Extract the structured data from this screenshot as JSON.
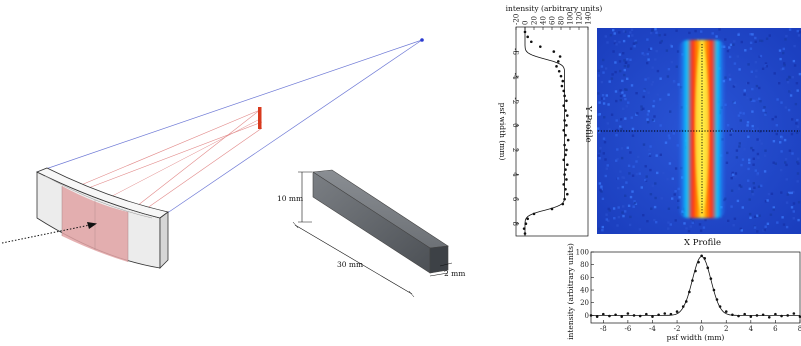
{
  "schematic": {
    "dim_height": "10 mm",
    "dim_length": "30 mm",
    "dim_depth": "2 mm"
  },
  "image_panel": {
    "x_profile_title": "X Profile",
    "y_profile_title": "Y Profile"
  },
  "chart_data": [
    {
      "type": "scatter",
      "name": "x-profile",
      "xlabel": "psf width (mm)",
      "ylabel": "intensity (arbitrary units)",
      "xlim": [
        -9,
        8
      ],
      "ylim": [
        -12,
        100
      ],
      "xticks": [
        -8,
        -6,
        -4,
        -2,
        0,
        2,
        4,
        6,
        8
      ],
      "yticks": [
        0,
        20,
        40,
        60,
        80,
        100
      ],
      "fit": {
        "amplitude": 93,
        "center": 0.0,
        "sigma": 0.75,
        "baseline": 0
      },
      "points_x": [
        -9,
        -8.5,
        -8,
        -7.5,
        -7,
        -6.5,
        -6,
        -5.5,
        -5,
        -4.5,
        -4,
        -3.5,
        -3,
        -2.5,
        -2,
        -1.5,
        -1.25,
        -1,
        -0.75,
        -0.5,
        -0.25,
        0,
        0.25,
        0.5,
        0.75,
        1,
        1.25,
        1.5,
        2,
        2.5,
        3,
        3.5,
        4,
        4.5,
        5,
        5.5,
        6,
        6.5,
        7,
        7.5,
        8
      ],
      "points_y": [
        0,
        -2,
        2,
        -1,
        1,
        -2,
        3,
        0,
        -1,
        2,
        -2,
        1,
        3,
        2,
        6,
        14,
        22,
        37,
        55,
        70,
        84,
        94,
        90,
        75,
        58,
        40,
        25,
        14,
        6,
        1,
        -1,
        2,
        -2,
        0,
        1,
        -3,
        2,
        -1,
        0,
        3,
        -2
      ]
    },
    {
      "type": "scatter",
      "name": "y-profile",
      "xlabel": "intensity (arbitrary units)",
      "ylabel": "psf width (mm)",
      "xlim": [
        -20,
        140
      ],
      "ylim": [
        -8,
        9
      ],
      "xticks": [
        -20,
        0,
        20,
        40,
        60,
        80,
        100,
        120,
        140
      ],
      "yticks": [
        -6,
        -4,
        -2,
        0,
        2,
        4,
        6,
        8
      ],
      "fit": {
        "plateau": 88,
        "from": -5.4,
        "to": 6.9,
        "edge_sigma": 0.35
      },
      "points_y": [
        -7.6,
        -7.2,
        -6.8,
        -6.4,
        -6,
        -5.6,
        -5.2,
        -4.8,
        -4.4,
        -4,
        -3.6,
        -3.2,
        -2.8,
        -2.4,
        -2,
        -1.6,
        -1.2,
        -0.8,
        -0.4,
        0,
        0.4,
        0.8,
        1.2,
        1.6,
        2,
        2.4,
        2.8,
        3.2,
        3.6,
        4,
        4.4,
        4.8,
        5.2,
        5.6,
        6,
        6.4,
        6.8,
        7.2,
        7.6,
        8,
        8.4,
        8.8
      ],
      "points_x": [
        0,
        6,
        14,
        34,
        64,
        78,
        74,
        70,
        76,
        80,
        84,
        82,
        86,
        88,
        92,
        86,
        90,
        94,
        88,
        92,
        86,
        90,
        96,
        88,
        92,
        90,
        86,
        94,
        90,
        88,
        92,
        86,
        90,
        94,
        88,
        84,
        60,
        20,
        6,
        2,
        -2,
        0
      ]
    }
  ],
  "colors": {
    "ray_blue": "#6f7ad6",
    "ray_red": "#e28a8a",
    "detector_red": "#d83a1e",
    "mirror_fill": "#e2a3a5",
    "block_gray": "#6b6f74"
  }
}
